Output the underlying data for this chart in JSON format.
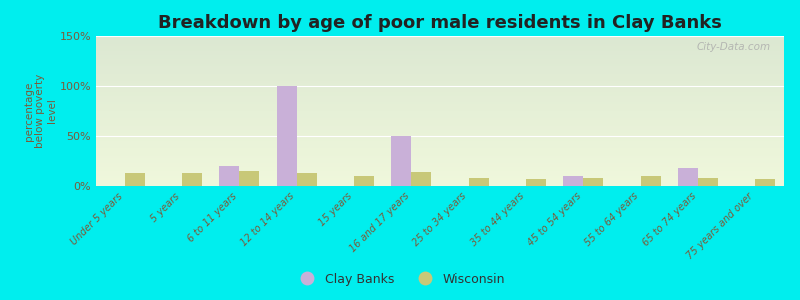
{
  "title": "Breakdown by age of poor male residents in Clay Banks",
  "ylabel": "percentage\nbelow poverty\nlevel",
  "categories": [
    "Under 5 years",
    "5 years",
    "6 to 11 years",
    "12 to 14 years",
    "15 years",
    "16 and 17 years",
    "25 to 34 years",
    "35 to 44 years",
    "45 to 54 years",
    "55 to 64 years",
    "65 to 74 years",
    "75 years and over"
  ],
  "clay_banks": [
    0,
    0,
    20,
    100,
    0,
    50,
    0,
    0,
    10,
    0,
    18,
    0
  ],
  "wisconsin": [
    13,
    13,
    15,
    13,
    10,
    14,
    8,
    7,
    8,
    10,
    8,
    7
  ],
  "clay_banks_color": "#c9b0d8",
  "wisconsin_color": "#c8c878",
  "background_color": "#00eeee",
  "ylim": [
    0,
    150
  ],
  "yticks": [
    0,
    50,
    100,
    150
  ],
  "ytick_labels": [
    "0%",
    "50%",
    "100%",
    "150%"
  ],
  "bar_width": 0.35,
  "title_fontsize": 13,
  "tick_label_color": "#7B5B3A",
  "ylabel_color": "#7B5B3A",
  "watermark": "City-Data.com",
  "legend_label_color": "#333333"
}
